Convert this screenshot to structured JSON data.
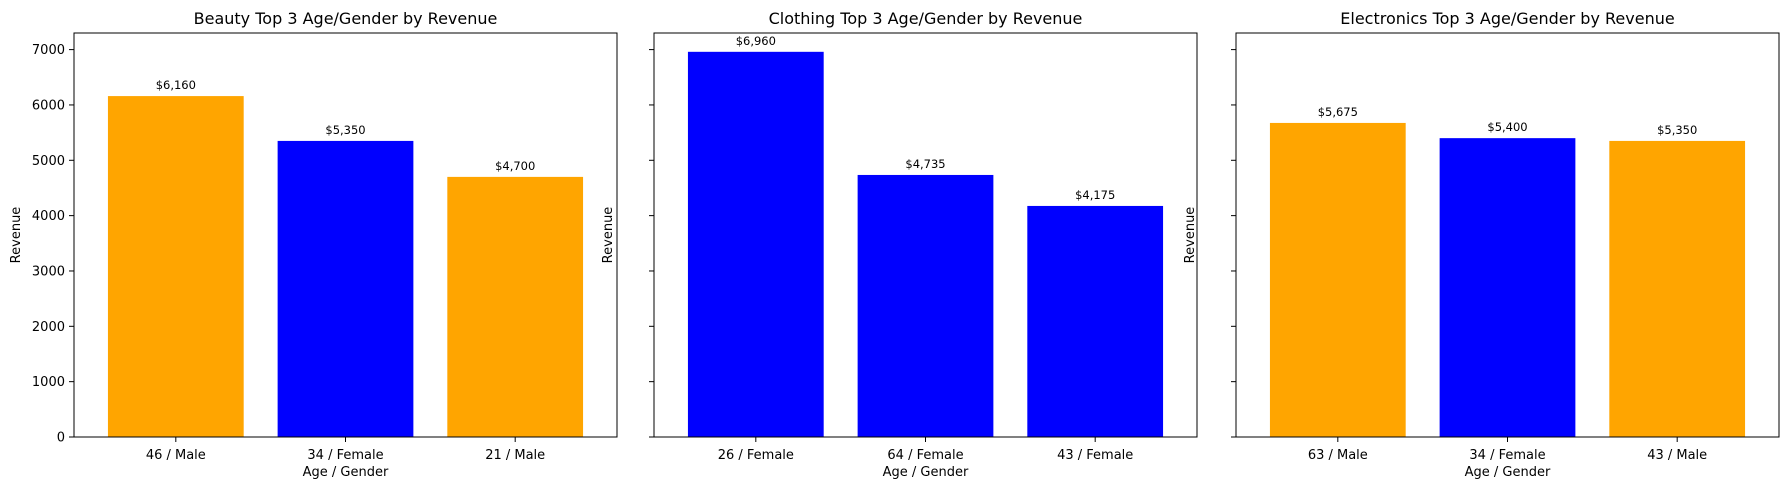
{
  "colors": {
    "male": "#FFA500",
    "female": "#0000FF"
  },
  "chart_data": [
    {
      "type": "bar",
      "title": "Beauty Top 3 Age/Gender by Revenue",
      "xlabel": "Age / Gender",
      "ylabel": "Revenue",
      "ylim": [
        0,
        7300
      ],
      "yticks": [
        0,
        1000,
        2000,
        3000,
        4000,
        5000,
        6000,
        7000
      ],
      "show_ytick_labels": true,
      "categories": [
        "46 / Male",
        "34 / Female",
        "21 / Male"
      ],
      "values": [
        6160,
        5350,
        4700
      ],
      "value_labels": [
        "$6,160",
        "$5,350",
        "$4,700"
      ],
      "gender": [
        "male",
        "female",
        "male"
      ]
    },
    {
      "type": "bar",
      "title": "Clothing Top 3 Age/Gender by Revenue",
      "xlabel": "Age / Gender",
      "ylabel": "Revenue",
      "ylim": [
        0,
        7300
      ],
      "yticks": [
        0,
        1000,
        2000,
        3000,
        4000,
        5000,
        6000,
        7000
      ],
      "show_ytick_labels": false,
      "categories": [
        "26 / Female",
        "64 / Female",
        "43 / Female"
      ],
      "values": [
        6960,
        4735,
        4175
      ],
      "value_labels": [
        "$6,960",
        "$4,735",
        "$4,175"
      ],
      "gender": [
        "female",
        "female",
        "female"
      ]
    },
    {
      "type": "bar",
      "title": "Electronics Top 3 Age/Gender by Revenue",
      "xlabel": "Age / Gender",
      "ylabel": "Revenue",
      "ylim": [
        0,
        7300
      ],
      "yticks": [
        0,
        1000,
        2000,
        3000,
        4000,
        5000,
        6000,
        7000
      ],
      "show_ytick_labels": false,
      "categories": [
        "63 / Male",
        "34 / Female",
        "43 / Male"
      ],
      "values": [
        5675,
        5400,
        5350
      ],
      "value_labels": [
        "$5,675",
        "$5,400",
        "$5,350"
      ],
      "gender": [
        "male",
        "female",
        "male"
      ]
    }
  ]
}
